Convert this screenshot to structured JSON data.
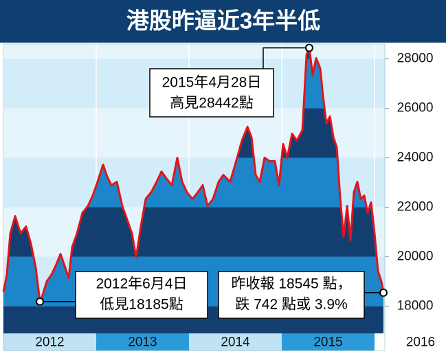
{
  "chart_data": {
    "type": "area",
    "title": "港股昨逼近3年半低",
    "x": [
      2012.0,
      2012.037,
      2012.074,
      2012.126,
      2012.185,
      2012.244,
      2012.296,
      2012.348,
      2012.393,
      2012.422,
      2012.467,
      2012.519,
      2012.57,
      2012.615,
      2012.667,
      2012.704,
      2012.741,
      2012.793,
      2012.852,
      2012.911,
      2012.963,
      2013.015,
      2013.074,
      2013.111,
      2013.163,
      2013.222,
      2013.281,
      2013.333,
      2013.385,
      2013.43,
      2013.481,
      2013.533,
      2013.593,
      2013.652,
      2013.704,
      2013.756,
      2013.815,
      2013.874,
      2013.926,
      2013.978,
      2014.037,
      2014.096,
      2014.148,
      2014.2,
      2014.259,
      2014.319,
      2014.37,
      2014.444,
      2014.519,
      2014.57,
      2014.63,
      2014.674,
      2014.719,
      2014.763,
      2014.815,
      2014.867,
      2014.926,
      2014.97,
      2015.015,
      2015.059,
      2015.111,
      2015.163,
      2015.222,
      2015.267,
      2015.296,
      2015.333,
      2015.37,
      2015.415,
      2015.444,
      2015.481,
      2015.519,
      2015.556,
      2015.593,
      2015.63,
      2015.667,
      2015.704,
      2015.741,
      2015.778,
      2015.815,
      2015.852,
      2015.889,
      2015.926,
      2015.963,
      2016.0,
      2016.037,
      2016.074,
      2016.096
    ],
    "values": [
      18583,
      19278,
      20944,
      21639,
      20944,
      21222,
      20528,
      19556,
      18185,
      18444,
      19000,
      19278,
      19694,
      20111,
      19556,
      19139,
      20389,
      20944,
      21778,
      22056,
      22472,
      23028,
      23722,
      23306,
      22889,
      23028,
      22056,
      21500,
      20944,
      19972,
      21222,
      22333,
      22611,
      23028,
      23444,
      23167,
      22889,
      24000,
      23028,
      22611,
      22333,
      22611,
      22889,
      22056,
      22333,
      23028,
      23306,
      23028,
      24000,
      24694,
      25250,
      24833,
      23306,
      23028,
      24000,
      23861,
      23861,
      22889,
      24556,
      24000,
      24972,
      24694,
      25111,
      28167,
      28442,
      27333,
      28028,
      27611,
      26500,
      25389,
      25667,
      24833,
      24417,
      22333,
      20806,
      22056,
      20667,
      22611,
      23028,
      22333,
      22472,
      21778,
      22194,
      20944,
      19417,
      19000,
      18545
    ],
    "color": "#e3141b",
    "xlim": [
      2012,
      2016.111
    ],
    "xticks": [
      2012,
      2013,
      2014,
      2015,
      2016
    ],
    "ylim": [
      16900,
      28600
    ],
    "yticks": [
      18000,
      20000,
      22000,
      24000,
      26000,
      28000
    ],
    "annotations": [
      {
        "text": [
          "2015年4月28日",
          "高見28442點"
        ]
      },
      {
        "text": [
          "2012年6月4日",
          "低見18185點"
        ]
      },
      {
        "text": [
          "昨收報 18545 點，",
          "跌 742 點或 3.9%"
        ]
      }
    ]
  }
}
